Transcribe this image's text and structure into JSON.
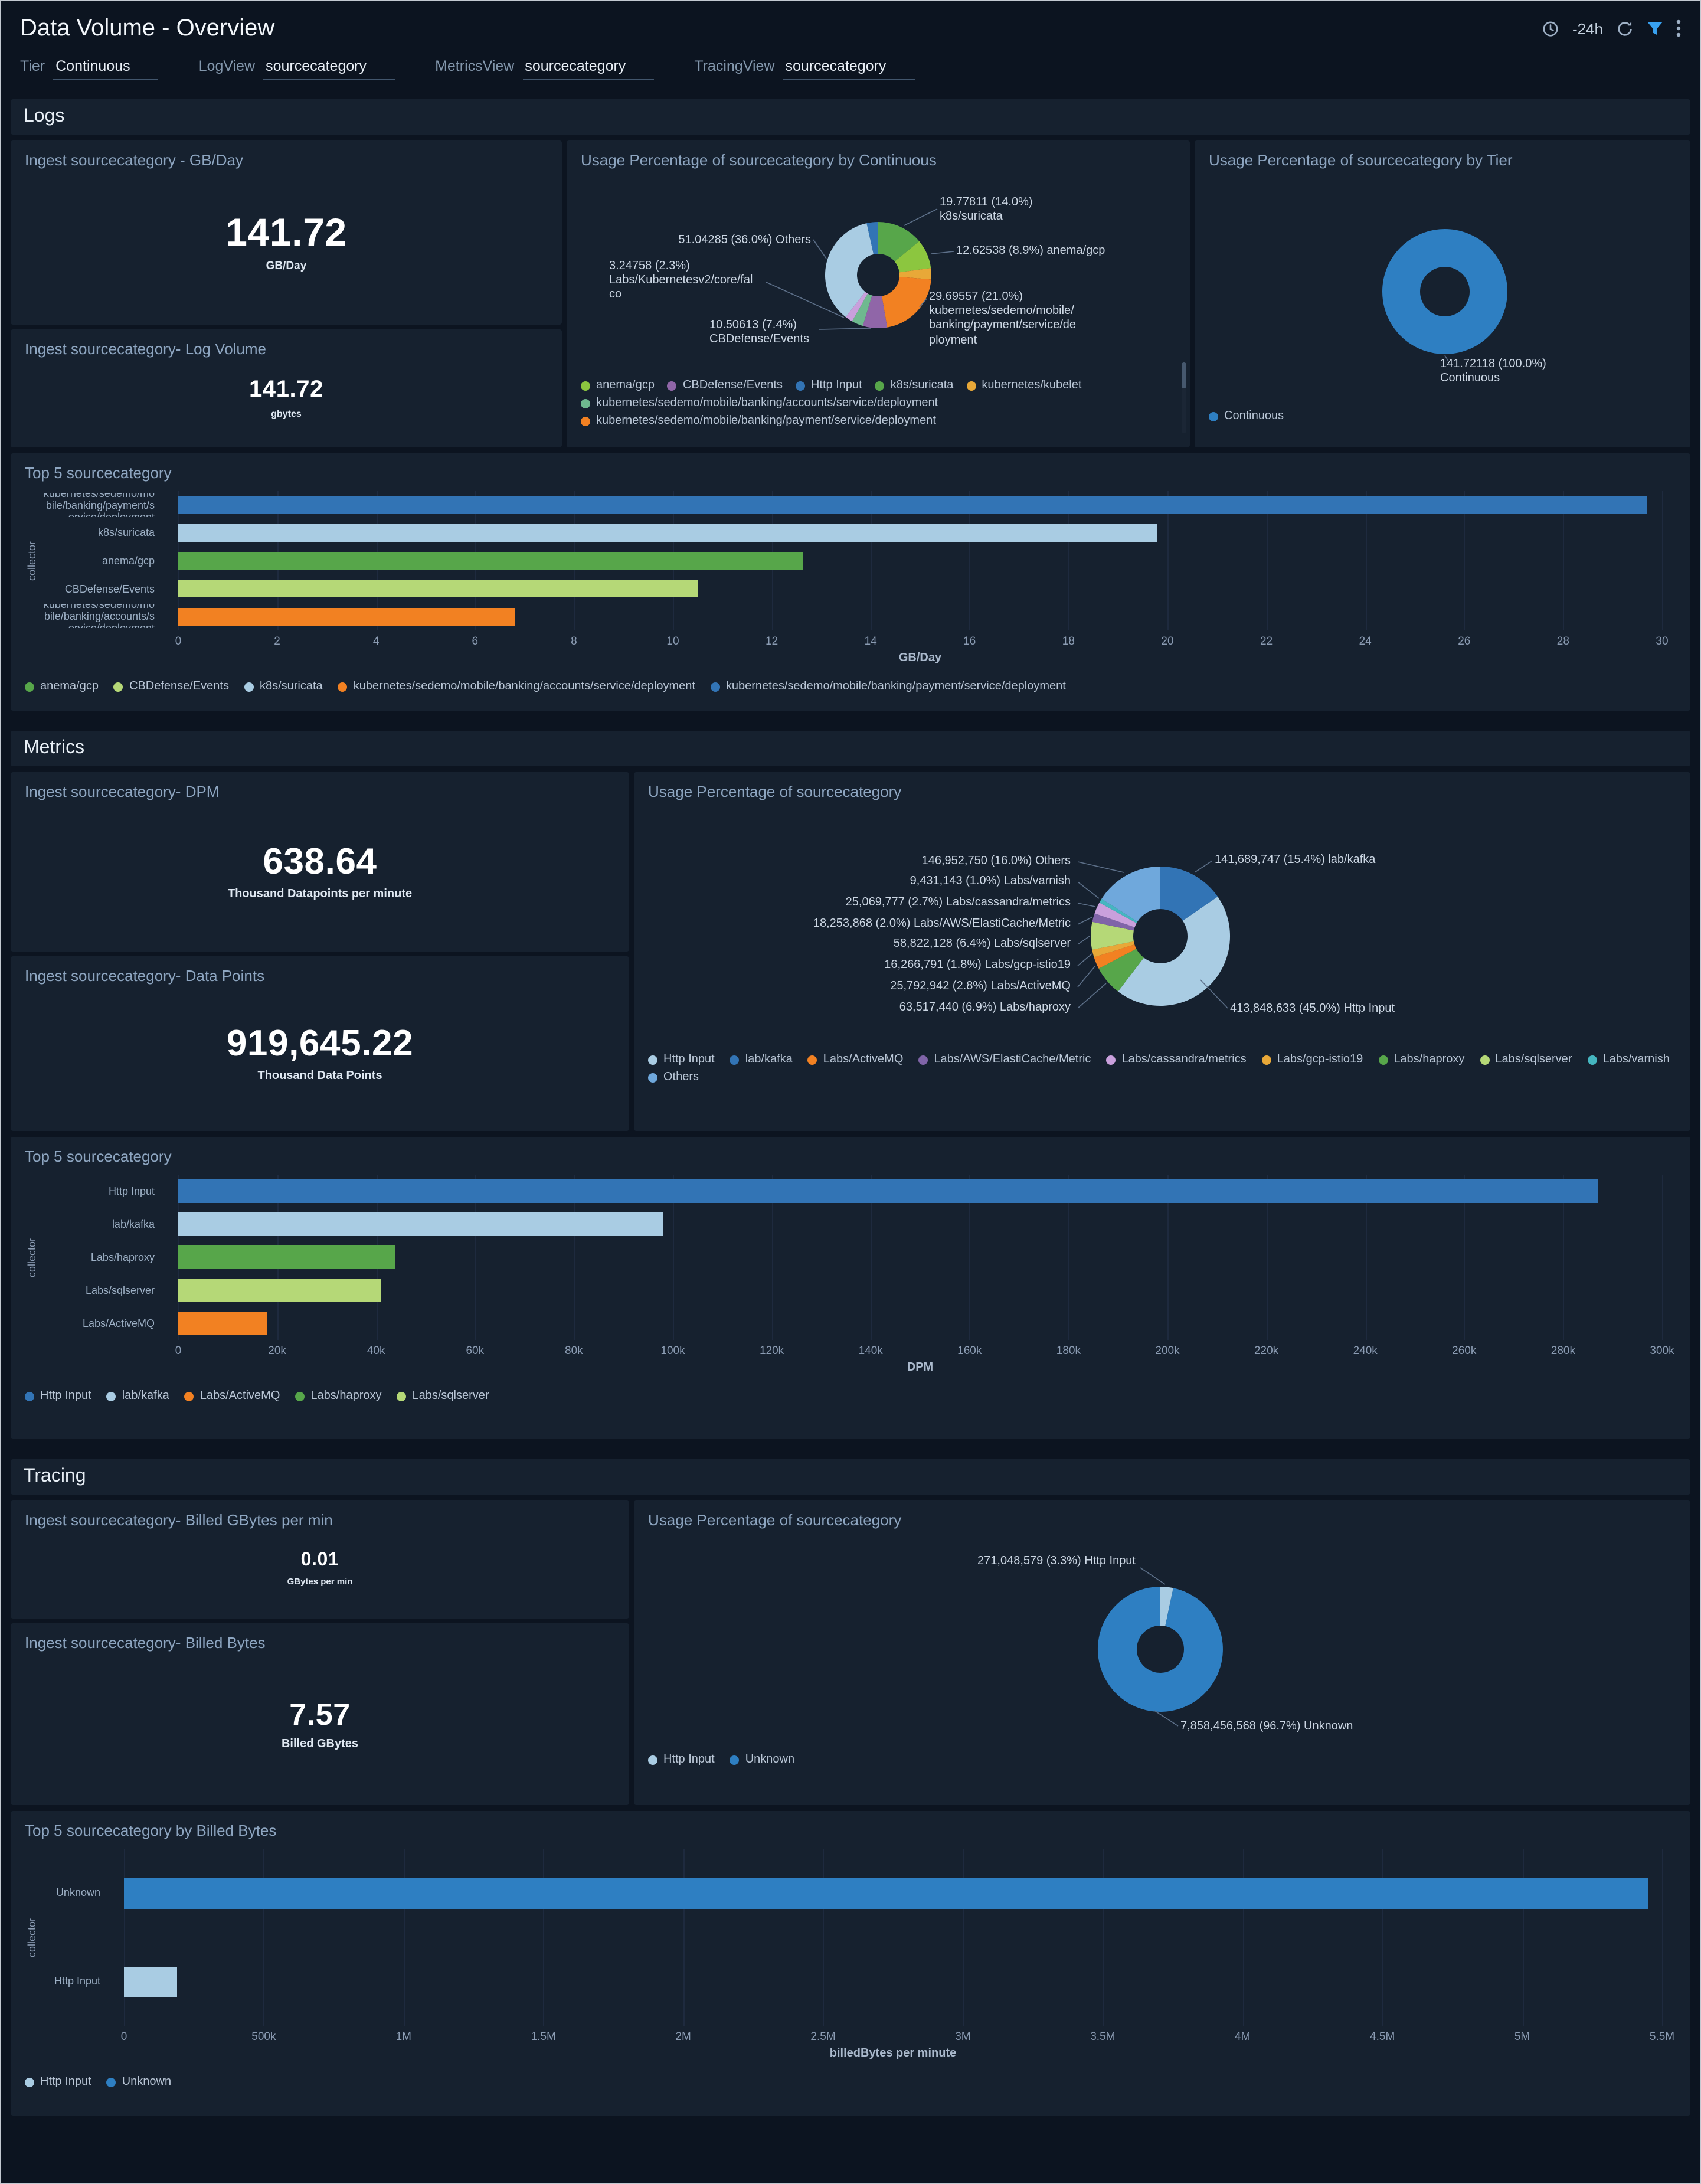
{
  "header": {
    "title": "Data Volume - Overview",
    "time_range": "-24h",
    "icons": [
      "clock-icon",
      "refresh-icon",
      "filter-icon",
      "kebab-icon"
    ]
  },
  "filters": [
    {
      "label": "Tier",
      "value": "Continuous"
    },
    {
      "label": "LogView",
      "value": "sourcecategory"
    },
    {
      "label": "MetricsView",
      "value": "sourcecategory"
    },
    {
      "label": "TracingView",
      "value": "sourcecategory"
    }
  ],
  "sections": {
    "logs": "Logs",
    "metrics": "Metrics",
    "tracing": "Tracing"
  },
  "panels": {
    "logs_gbday": {
      "title": "Ingest sourcecategory - GB/Day",
      "value": "141.72",
      "unit": "GB/Day"
    },
    "logs_volume": {
      "title": "Ingest sourcecategory- Log Volume",
      "value": "141.72",
      "unit": "gbytes"
    },
    "logs_usage_continuous": {
      "title": "Usage Percentage of sourcecategory by Continuous"
    },
    "logs_usage_tier": {
      "title": "Usage Percentage of sourcecategory by Tier"
    },
    "logs_top5": {
      "title": "Top 5 sourcecategory"
    },
    "metrics_dpm": {
      "title": "Ingest sourcecategory- DPM",
      "value": "638.64",
      "unit": "Thousand Datapoints per minute"
    },
    "metrics_datapoints": {
      "title": "Ingest sourcecategory- Data Points",
      "value": "919,645.22",
      "unit": "Thousand Data Points"
    },
    "metrics_usage": {
      "title": "Usage Percentage of sourcecategory"
    },
    "metrics_top5": {
      "title": "Top 5 sourcecategory"
    },
    "tracing_billed_rate": {
      "title": "Ingest sourcecategory- Billed GBytes per min",
      "value": "0.01",
      "unit": "GBytes per min"
    },
    "tracing_billed_bytes": {
      "title": "Ingest sourcecategory- Billed Bytes",
      "value": "7.57",
      "unit": "Billed GBytes"
    },
    "tracing_usage": {
      "title": "Usage Percentage of sourcecategory"
    },
    "tracing_top5": {
      "title": "Top 5 sourcecategory by Billed Bytes"
    }
  },
  "chart_data": {
    "logs_usage_continuous": {
      "type": "pie",
      "title": "Usage Percentage of sourcecategory by Continuous",
      "segments": [
        {
          "label": "k8s/suricata",
          "value": 19.77811,
          "pct": 14.0,
          "color": "#57a64a"
        },
        {
          "label": "anema/gcp",
          "value": 12.62538,
          "pct": 8.9,
          "color": "#8cc63f"
        },
        {
          "label": "kubernetes/kubelet",
          "pct": 3.4,
          "color": "#e8a838"
        },
        {
          "label": "kubernetes/sedemo/mobile/banking/payment/service/deployment",
          "value": 29.69557,
          "pct": 21.0,
          "color": "#f28122"
        },
        {
          "label": "CBDefense/Events",
          "value": 10.50613,
          "pct": 7.4,
          "color": "#9066a8"
        },
        {
          "label": "kubernetes/sedemo/mobile/banking/accounts/service/deployment",
          "pct": 3.5,
          "color": "#6fb98f"
        },
        {
          "label": "Labs/Kubernetesv2/core/falco",
          "value": 3.24758,
          "pct": 2.3,
          "color": "#c9a0dc"
        },
        {
          "label": "Others",
          "value": 51.04285,
          "pct": 36.0,
          "color": "#a9cce3"
        },
        {
          "label": "Http Input",
          "pct": 3.5,
          "color": "#3274b5"
        }
      ],
      "callouts": [
        {
          "for": "k8s/suricata",
          "text": "19.77811 (14.0%)\nk8s/suricata"
        },
        {
          "for": "anema/gcp",
          "text": "12.62538 (8.9%) anema/gcp"
        },
        {
          "for": "Others",
          "text": "51.04285 (36.0%) Others"
        },
        {
          "for": "Labs/Kubernetesv2/core/falco",
          "text": "3.24758 (2.3%)\nLabs/Kubernetesv2/core/fal\nco"
        },
        {
          "for": "CBDefense/Events",
          "text": "10.50613 (7.4%)\nCBDefense/Events"
        },
        {
          "for": "kubernetes/sedemo/mobile/banking/payment/service/deployment",
          "text": "29.69557 (21.0%)\nkubernetes/sedemo/mobile/\nbanking/payment/service/de\nployment"
        }
      ],
      "legend": [
        {
          "label": "anema/gcp",
          "color": "#8cc63f"
        },
        {
          "label": "CBDefense/Events",
          "color": "#9066a8"
        },
        {
          "label": "Http Input",
          "color": "#3274b5"
        },
        {
          "label": "k8s/suricata",
          "color": "#57a64a"
        },
        {
          "label": "kubernetes/kubelet",
          "color": "#e8a838"
        },
        {
          "label": "kubernetes/sedemo/mobile/banking/accounts/service/deployment",
          "color": "#6fb98f"
        },
        {
          "label": "kubernetes/sedemo/mobile/banking/payment/service/deployment",
          "color": "#f28122"
        }
      ]
    },
    "logs_usage_tier": {
      "type": "pie",
      "title": "Usage Percentage of sourcecategory by Tier",
      "segments": [
        {
          "label": "Continuous",
          "value": 141.72118,
          "pct": 100.0,
          "color": "#2e7fc2"
        }
      ],
      "callouts": [
        {
          "for": "Continuous",
          "text": "141.72118 (100.0%)\nContinuous"
        }
      ],
      "legend": [
        {
          "label": "Continuous",
          "color": "#2e7fc2"
        }
      ]
    },
    "logs_top5": {
      "type": "bar",
      "title": "Top 5 sourcecategory",
      "xlabel": "GB/Day",
      "ylabel": "collector",
      "xmax": 30,
      "ticks": [
        "0",
        "2",
        "4",
        "6",
        "8",
        "10",
        "12",
        "14",
        "16",
        "18",
        "20",
        "22",
        "24",
        "26",
        "28",
        "30"
      ],
      "categories": [
        "kubernetes/sedemo/mobile/banking/payment/service/deployment",
        "k8s/suricata",
        "anema/gcp",
        "CBDefense/Events",
        "kubernetes/sedemo/mobile/banking/accounts/service/deployment"
      ],
      "values": [
        29.69557,
        19.77811,
        12.62538,
        10.50613,
        6.8
      ],
      "colors": [
        "#3274b5",
        "#a9cce3",
        "#57a64a",
        "#b5d877",
        "#f28122"
      ],
      "legend": [
        {
          "label": "anema/gcp",
          "color": "#57a64a"
        },
        {
          "label": "CBDefense/Events",
          "color": "#b5d877"
        },
        {
          "label": "k8s/suricata",
          "color": "#a9cce3"
        },
        {
          "label": "kubernetes/sedemo/mobile/banking/accounts/service/deployment",
          "color": "#f28122"
        },
        {
          "label": "kubernetes/sedemo/mobile/banking/payment/service/deployment",
          "color": "#3274b5"
        }
      ]
    },
    "metrics_usage": {
      "type": "pie",
      "title": "Usage Percentage of sourcecategory",
      "segments": [
        {
          "label": "lab/kafka",
          "value": 141689747,
          "pct": 15.4,
          "color": "#3274b5"
        },
        {
          "label": "Http Input",
          "value": 413848633,
          "pct": 45.0,
          "color": "#a9cce3"
        },
        {
          "label": "Labs/haproxy",
          "value": 63517440,
          "pct": 6.9,
          "color": "#57a64a"
        },
        {
          "label": "Labs/ActiveMQ",
          "value": 25792942,
          "pct": 2.8,
          "color": "#f28122"
        },
        {
          "label": "Labs/gcp-istio19",
          "value": 16266791,
          "pct": 1.8,
          "color": "#e8a838"
        },
        {
          "label": "Labs/sqlserver",
          "value": 58822128,
          "pct": 6.4,
          "color": "#b5d877"
        },
        {
          "label": "Labs/AWS/ElastiCache/Metric",
          "value": 18253868,
          "pct": 2.0,
          "color": "#8064a8"
        },
        {
          "label": "Labs/cassandra/metrics",
          "value": 25069777,
          "pct": 2.7,
          "color": "#c9a0dc"
        },
        {
          "label": "Labs/varnish",
          "value": 9431143,
          "pct": 1.0,
          "color": "#45b6c0"
        },
        {
          "label": "Others",
          "value": 146952750,
          "pct": 16.0,
          "color": "#6fa8dc"
        }
      ],
      "callouts": [
        {
          "for": "Others",
          "text": "146,952,750 (16.0%) Others"
        },
        {
          "for": "Labs/varnish",
          "text": "9,431,143 (1.0%) Labs/varnish"
        },
        {
          "for": "Labs/cassandra/metrics",
          "text": "25,069,777 (2.7%) Labs/cassandra/metrics"
        },
        {
          "for": "Labs/AWS/ElastiCache/Metric",
          "text": "18,253,868 (2.0%) Labs/AWS/ElastiCache/Metric"
        },
        {
          "for": "Labs/sqlserver",
          "text": "58,822,128 (6.4%) Labs/sqlserver"
        },
        {
          "for": "Labs/gcp-istio19",
          "text": "16,266,791 (1.8%) Labs/gcp-istio19"
        },
        {
          "for": "Labs/ActiveMQ",
          "text": "25,792,942 (2.8%) Labs/ActiveMQ"
        },
        {
          "for": "Labs/haproxy",
          "text": "63,517,440 (6.9%) Labs/haproxy"
        },
        {
          "for": "lab/kafka",
          "text": "141,689,747 (15.4%) lab/kafka"
        },
        {
          "for": "Http Input",
          "text": "413,848,633 (45.0%) Http Input"
        }
      ],
      "legend": [
        {
          "label": "Http Input",
          "color": "#a9cce3"
        },
        {
          "label": "lab/kafka",
          "color": "#3274b5"
        },
        {
          "label": "Labs/ActiveMQ",
          "color": "#f28122"
        },
        {
          "label": "Labs/AWS/ElastiCache/Metric",
          "color": "#8064a8"
        },
        {
          "label": "Labs/cassandra/metrics",
          "color": "#c9a0dc"
        },
        {
          "label": "Labs/gcp-istio19",
          "color": "#e8a838"
        },
        {
          "label": "Labs/haproxy",
          "color": "#57a64a"
        },
        {
          "label": "Labs/sqlserver",
          "color": "#b5d877"
        },
        {
          "label": "Labs/varnish",
          "color": "#45b6c0"
        },
        {
          "label": "Others",
          "color": "#6fa8dc"
        }
      ]
    },
    "metrics_top5": {
      "type": "bar",
      "title": "Top 5 sourcecategory",
      "xlabel": "DPM",
      "ylabel": "collector",
      "xmax": 300000,
      "ticks": [
        "0",
        "20k",
        "40k",
        "60k",
        "80k",
        "100k",
        "120k",
        "140k",
        "160k",
        "180k",
        "200k",
        "220k",
        "240k",
        "260k",
        "280k",
        "300k"
      ],
      "categories": [
        "Http Input",
        "lab/kafka",
        "Labs/haproxy",
        "Labs/sqlserver",
        "Labs/ActiveMQ"
      ],
      "values": [
        287000,
        98000,
        44000,
        41000,
        18000
      ],
      "colors": [
        "#3274b5",
        "#a9cce3",
        "#57a64a",
        "#b5d877",
        "#f28122"
      ],
      "legend": [
        {
          "label": "Http Input",
          "color": "#3274b5"
        },
        {
          "label": "lab/kafka",
          "color": "#a9cce3"
        },
        {
          "label": "Labs/ActiveMQ",
          "color": "#f28122"
        },
        {
          "label": "Labs/haproxy",
          "color": "#57a64a"
        },
        {
          "label": "Labs/sqlserver",
          "color": "#b5d877"
        }
      ]
    },
    "tracing_usage": {
      "type": "pie",
      "title": "Usage Percentage of sourcecategory",
      "segments": [
        {
          "label": "Http Input",
          "value": 271048579,
          "pct": 3.3,
          "color": "#a9cce3"
        },
        {
          "label": "Unknown",
          "value": 7858456568,
          "pct": 96.7,
          "color": "#2e7fc2"
        }
      ],
      "callouts": [
        {
          "for": "Http Input",
          "text": "271,048,579 (3.3%) Http Input"
        },
        {
          "for": "Unknown",
          "text": "7,858,456,568 (96.7%) Unknown"
        }
      ],
      "legend": [
        {
          "label": "Http Input",
          "color": "#a9cce3"
        },
        {
          "label": "Unknown",
          "color": "#2e7fc2"
        }
      ]
    },
    "tracing_top5": {
      "type": "bar",
      "title": "Top 5 sourcecategory by Billed Bytes",
      "xlabel": "billedBytes per minute",
      "ylabel": "collector",
      "xmax": 5500000,
      "ticks": [
        "0",
        "500k",
        "1M",
        "1.5M",
        "2M",
        "2.5M",
        "3M",
        "3.5M",
        "4M",
        "4.5M",
        "5M",
        "5.5M"
      ],
      "categories": [
        "Unknown",
        "Http Input"
      ],
      "values": [
        5450000,
        190000
      ],
      "colors": [
        "#2e7fc2",
        "#a9cce3"
      ],
      "legend": [
        {
          "label": "Http Input",
          "color": "#a9cce3"
        },
        {
          "label": "Unknown",
          "color": "#2e7fc2"
        }
      ]
    }
  },
  "colors": {
    "accent_blue": "#38a1f0",
    "panel_bg": "#16212f",
    "page_bg": "#0c1420"
  }
}
